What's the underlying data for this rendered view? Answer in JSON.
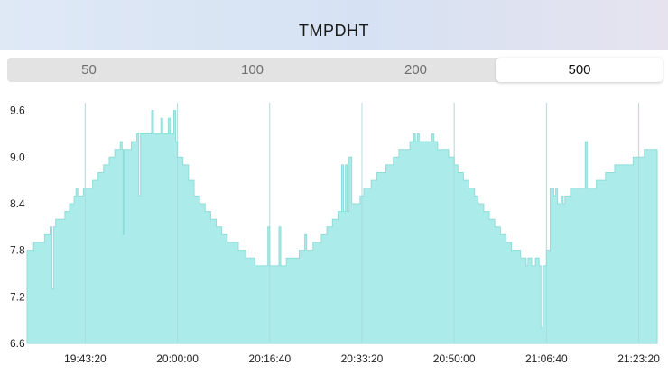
{
  "header": {
    "title": "TMPDHT"
  },
  "range_selector": {
    "options": [
      {
        "label": "50",
        "selected": false
      },
      {
        "label": "100",
        "selected": false
      },
      {
        "label": "200",
        "selected": false
      },
      {
        "label": "500",
        "selected": true
      }
    ]
  },
  "colors": {
    "area_fill": "#abecea",
    "area_line": "#8fdcd8",
    "grid": "#e2e2e2",
    "selected_bg": "#ffffff"
  },
  "chart_data": {
    "type": "area",
    "title": "",
    "xlabel": "",
    "ylabel": "",
    "ylim": [
      6.6,
      9.7
    ],
    "y_ticks": [
      "6.6",
      "7.2",
      "7.8",
      "8.4",
      "9.0",
      "9.6"
    ],
    "x_ticks": [
      "19:43:20",
      "20:00:00",
      "20:16:40",
      "20:33:20",
      "20:50:00",
      "21:06:40",
      "21:23:20"
    ],
    "x_start": "19:32:50",
    "x_end": "21:26:40",
    "points": [
      [
        "19:32:50",
        7.8
      ],
      [
        "19:34:00",
        7.9
      ],
      [
        "19:36:00",
        8.0
      ],
      [
        "19:37:00",
        8.1
      ],
      [
        "19:37:20",
        7.3
      ],
      [
        "19:37:40",
        8.1
      ],
      [
        "19:38:00",
        8.2
      ],
      [
        "19:39:40",
        8.3
      ],
      [
        "19:40:30",
        8.4
      ],
      [
        "19:41:20",
        8.5
      ],
      [
        "19:41:40",
        8.6
      ],
      [
        "19:42:00",
        8.5
      ],
      [
        "19:43:00",
        8.6
      ],
      [
        "19:44:40",
        8.7
      ],
      [
        "19:45:40",
        8.8
      ],
      [
        "19:46:40",
        8.9
      ],
      [
        "19:47:40",
        9.0
      ],
      [
        "19:48:40",
        9.1
      ],
      [
        "19:49:40",
        9.2
      ],
      [
        "19:50:00",
        9.1
      ],
      [
        "19:50:10",
        8.0
      ],
      [
        "19:50:20",
        9.1
      ],
      [
        "19:51:40",
        9.2
      ],
      [
        "19:52:40",
        9.3
      ],
      [
        "19:53:00",
        8.5
      ],
      [
        "19:53:20",
        9.3
      ],
      [
        "19:55:20",
        9.6
      ],
      [
        "19:55:40",
        9.3
      ],
      [
        "19:57:00",
        9.5
      ],
      [
        "19:57:20",
        9.3
      ],
      [
        "19:58:20",
        9.5
      ],
      [
        "19:58:40",
        9.3
      ],
      [
        "19:59:20",
        9.6
      ],
      [
        "19:59:40",
        9.2
      ],
      [
        "20:00:00",
        9.0
      ],
      [
        "20:01:00",
        8.9
      ],
      [
        "20:02:00",
        8.7
      ],
      [
        "20:03:00",
        8.5
      ],
      [
        "20:04:00",
        8.4
      ],
      [
        "20:05:00",
        8.3
      ],
      [
        "20:06:00",
        8.2
      ],
      [
        "20:07:00",
        8.1
      ],
      [
        "20:08:00",
        8.0
      ],
      [
        "20:09:00",
        7.9
      ],
      [
        "20:11:00",
        7.8
      ],
      [
        "20:12:20",
        7.7
      ],
      [
        "20:14:00",
        7.6
      ],
      [
        "20:16:00",
        7.6
      ],
      [
        "20:16:20",
        8.1
      ],
      [
        "20:16:40",
        7.6
      ],
      [
        "20:18:00",
        7.6
      ],
      [
        "20:18:20",
        8.1
      ],
      [
        "20:18:40",
        7.6
      ],
      [
        "20:19:40",
        7.7
      ],
      [
        "20:22:00",
        7.8
      ],
      [
        "20:23:00",
        8.0
      ],
      [
        "20:23:20",
        7.8
      ],
      [
        "20:24:30",
        7.9
      ],
      [
        "20:26:00",
        8.0
      ],
      [
        "20:27:00",
        8.1
      ],
      [
        "20:28:00",
        8.2
      ],
      [
        "20:29:00",
        8.3
      ],
      [
        "20:29:40",
        8.9
      ],
      [
        "20:30:00",
        8.3
      ],
      [
        "20:30:20",
        8.9
      ],
      [
        "20:30:40",
        8.3
      ],
      [
        "20:31:00",
        9.0
      ],
      [
        "20:31:30",
        8.4
      ],
      [
        "20:33:00",
        8.5
      ],
      [
        "20:33:40",
        8.6
      ],
      [
        "20:35:00",
        8.7
      ],
      [
        "20:36:00",
        8.8
      ],
      [
        "20:37:40",
        8.9
      ],
      [
        "20:39:00",
        9.0
      ],
      [
        "20:40:00",
        9.1
      ],
      [
        "20:42:00",
        9.2
      ],
      [
        "20:42:40",
        9.3
      ],
      [
        "20:43:00",
        9.2
      ],
      [
        "20:43:20",
        9.3
      ],
      [
        "20:43:40",
        9.2
      ],
      [
        "20:46:00",
        9.3
      ],
      [
        "20:46:20",
        9.2
      ],
      [
        "20:47:00",
        9.1
      ],
      [
        "20:49:00",
        9.0
      ],
      [
        "20:50:00",
        8.9
      ],
      [
        "20:50:40",
        8.8
      ],
      [
        "20:51:40",
        8.7
      ],
      [
        "20:52:40",
        8.6
      ],
      [
        "20:53:40",
        8.5
      ],
      [
        "20:54:20",
        8.4
      ],
      [
        "20:55:20",
        8.3
      ],
      [
        "20:56:20",
        8.2
      ],
      [
        "20:57:20",
        8.1
      ],
      [
        "20:58:20",
        8.0
      ],
      [
        "20:59:20",
        7.9
      ],
      [
        "21:00:20",
        7.8
      ],
      [
        "21:02:00",
        7.7
      ],
      [
        "21:03:00",
        7.6
      ],
      [
        "21:03:20",
        7.7
      ],
      [
        "21:04:00",
        7.6
      ],
      [
        "21:04:40",
        7.7
      ],
      [
        "21:05:20",
        7.6
      ],
      [
        "21:05:40",
        6.8
      ],
      [
        "21:06:00",
        7.6
      ],
      [
        "21:06:40",
        7.8
      ],
      [
        "21:07:20",
        8.6
      ],
      [
        "21:08:00",
        8.5
      ],
      [
        "21:08:20",
        8.6
      ],
      [
        "21:08:40",
        8.4
      ],
      [
        "21:09:20",
        8.5
      ],
      [
        "21:09:40",
        8.4
      ],
      [
        "21:10:00",
        8.5
      ],
      [
        "21:11:00",
        8.6
      ],
      [
        "21:13:20",
        8.6
      ],
      [
        "21:13:40",
        9.2
      ],
      [
        "21:14:00",
        8.6
      ],
      [
        "21:15:40",
        8.7
      ],
      [
        "21:17:20",
        8.8
      ],
      [
        "21:19:00",
        8.9
      ],
      [
        "21:22:20",
        9.0
      ],
      [
        "21:24:20",
        9.1
      ],
      [
        "21:26:40",
        9.1
      ]
    ]
  }
}
